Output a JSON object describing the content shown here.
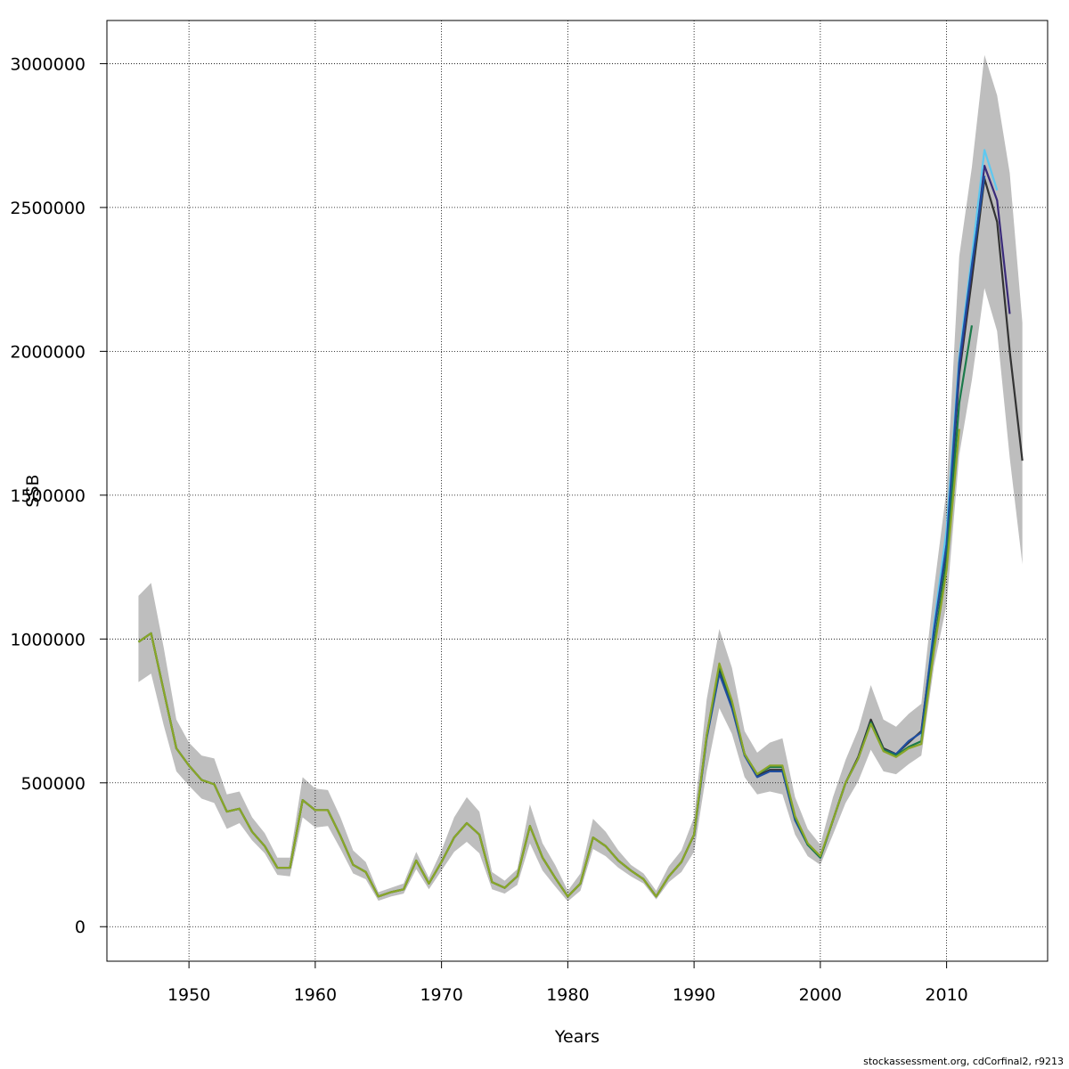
{
  "chart_data": {
    "type": "line",
    "xlabel": "Years",
    "ylabel": "SSB",
    "xlim": [
      1943.5,
      2018
    ],
    "ylim": [
      -120000,
      3150000
    ],
    "x_ticks": [
      1950,
      1960,
      1970,
      1980,
      1990,
      2000,
      2010
    ],
    "y_ticks": [
      0,
      500000,
      1000000,
      1500000,
      2000000,
      2500000,
      3000000
    ],
    "y_tick_labels": [
      "0",
      "500000",
      "1000000",
      "1500000",
      "2000000",
      "2500000",
      "3000000"
    ],
    "grid": true,
    "confidence_band": {
      "color": "#bebebe",
      "x": [
        1946,
        1947,
        1948,
        1949,
        1950,
        1951,
        1952,
        1953,
        1954,
        1955,
        1956,
        1957,
        1958,
        1959,
        1960,
        1961,
        1962,
        1963,
        1964,
        1965,
        1966,
        1967,
        1968,
        1969,
        1970,
        1971,
        1972,
        1973,
        1974,
        1975,
        1976,
        1977,
        1978,
        1979,
        1980,
        1981,
        1982,
        1983,
        1984,
        1985,
        1986,
        1987,
        1988,
        1989,
        1990,
        1991,
        1992,
        1993,
        1994,
        1995,
        1996,
        1997,
        1998,
        1999,
        2000,
        2001,
        2002,
        2003,
        2004,
        2005,
        2006,
        2007,
        2008,
        2009,
        2010,
        2011,
        2012,
        2013,
        2014,
        2015,
        2016
      ],
      "lower": [
        850000,
        880000,
        700000,
        540000,
        490000,
        445000,
        430000,
        340000,
        360000,
        300000,
        255000,
        180000,
        175000,
        380000,
        345000,
        350000,
        270000,
        185000,
        165000,
        90000,
        105000,
        115000,
        200000,
        130000,
        195000,
        260000,
        295000,
        255000,
        130000,
        115000,
        145000,
        290000,
        195000,
        140000,
        88000,
        125000,
        270000,
        245000,
        205000,
        175000,
        150000,
        95000,
        155000,
        190000,
        260000,
        540000,
        760000,
        670000,
        520000,
        460000,
        470000,
        460000,
        320000,
        245000,
        215000,
        320000,
        430000,
        505000,
        615000,
        540000,
        530000,
        565000,
        595000,
        905000,
        1120000,
        1640000,
        1900000,
        2220000,
        2070000,
        1630000,
        1260000
      ],
      "upper": [
        1150000,
        1195000,
        970000,
        720000,
        640000,
        595000,
        585000,
        460000,
        470000,
        380000,
        325000,
        240000,
        240000,
        520000,
        480000,
        475000,
        380000,
        265000,
        225000,
        120000,
        135000,
        150000,
        260000,
        170000,
        265000,
        380000,
        450000,
        400000,
        190000,
        160000,
        200000,
        425000,
        290000,
        215000,
        125000,
        185000,
        375000,
        330000,
        265000,
        215000,
        185000,
        125000,
        210000,
        265000,
        380000,
        790000,
        1035000,
        900000,
        680000,
        605000,
        640000,
        655000,
        450000,
        340000,
        285000,
        450000,
        580000,
        685000,
        840000,
        720000,
        695000,
        740000,
        775000,
        1175000,
        1520000,
        2330000,
        2640000,
        3030000,
        2890000,
        2620000,
        2100000
      ]
    },
    "series": [
      {
        "color": "#333333",
        "x": [
          1946,
          1947,
          1948,
          1949,
          1950,
          1951,
          1952,
          1953,
          1954,
          1955,
          1956,
          1957,
          1958,
          1959,
          1960,
          1961,
          1962,
          1963,
          1964,
          1965,
          1966,
          1967,
          1968,
          1969,
          1970,
          1971,
          1972,
          1973,
          1974,
          1975,
          1976,
          1977,
          1978,
          1979,
          1980,
          1981,
          1982,
          1983,
          1984,
          1985,
          1986,
          1987,
          1988,
          1989,
          1990,
          1991,
          1992,
          1993,
          1994,
          1995,
          1996,
          1997,
          1998,
          1999,
          2000,
          2001,
          2002,
          2003,
          2004,
          2005,
          2006,
          2007,
          2008,
          2009,
          2010,
          2011,
          2012,
          2013,
          2014,
          2015,
          2016
        ],
        "values": [
          990000,
          1020000,
          820000,
          620000,
          560000,
          510000,
          495000,
          400000,
          410000,
          330000,
          280000,
          205000,
          205000,
          440000,
          405000,
          405000,
          315000,
          215000,
          190000,
          105000,
          120000,
          130000,
          230000,
          150000,
          225000,
          310000,
          360000,
          320000,
          155000,
          135000,
          175000,
          350000,
          240000,
          170000,
          105000,
          150000,
          310000,
          280000,
          230000,
          195000,
          165000,
          105000,
          175000,
          225000,
          320000,
          660000,
          890000,
          770000,
          600000,
          525000,
          545000,
          545000,
          375000,
          285000,
          240000,
          370000,
          500000,
          590000,
          720000,
          620000,
          600000,
          640000,
          680000,
          1030000,
          1310000,
          1920000,
          2250000,
          2600000,
          2450000,
          2000000,
          1620000
        ]
      },
      {
        "color": "#3a2a7a",
        "x": [
          2009,
          2010,
          2011,
          2012,
          2013,
          2014,
          2015
        ],
        "values": [
          1040000,
          1330000,
          1940000,
          2290000,
          2645000,
          2525000,
          2130000
        ]
      },
      {
        "color": "#5ec8f0",
        "x": [
          2008,
          2009,
          2010,
          2011,
          2012,
          2013,
          2014
        ],
        "values": [
          660000,
          1050000,
          1380000,
          1980000,
          2330000,
          2700000,
          2560000
        ]
      },
      {
        "color": "#1f4ea0",
        "x": [
          1990,
          1991,
          1992,
          1993,
          1994,
          1995,
          1996,
          1997,
          1998,
          1999,
          2000,
          2001,
          2002,
          2003,
          2004,
          2005,
          2006,
          2007,
          2008,
          2009,
          2010,
          2011,
          2012,
          2013
        ],
        "values": [
          315000,
          655000,
          880000,
          760000,
          595000,
          520000,
          540000,
          540000,
          370000,
          285000,
          240000,
          370000,
          500000,
          585000,
          710000,
          615000,
          600000,
          645000,
          675000,
          1030000,
          1330000,
          1960000,
          2300000,
          2610000
        ]
      },
      {
        "color": "#1b7a4a",
        "x": [
          1946,
          1947,
          1948,
          1949,
          1950,
          1951,
          1952,
          1953,
          1954,
          1955,
          1956,
          1957,
          1958,
          1959,
          1960,
          1961,
          1962,
          1963,
          1964,
          1965,
          1966,
          1967,
          1968,
          1969,
          1970,
          1971,
          1972,
          1973,
          1974,
          1975,
          1976,
          1977,
          1978,
          1979,
          1980,
          1981,
          1982,
          1983,
          1984,
          1985,
          1986,
          1987,
          1988,
          1989,
          1990,
          1991,
          1992,
          1993,
          1994,
          1995,
          1996,
          1997,
          1998,
          1999,
          2000,
          2001,
          2002,
          2003,
          2004,
          2005,
          2006,
          2007,
          2008,
          2009,
          2010,
          2011,
          2012
        ],
        "values": [
          990000,
          1020000,
          820000,
          620000,
          560000,
          510000,
          495000,
          400000,
          410000,
          330000,
          280000,
          205000,
          205000,
          440000,
          405000,
          405000,
          315000,
          215000,
          190000,
          105000,
          120000,
          130000,
          230000,
          150000,
          225000,
          310000,
          360000,
          320000,
          155000,
          135000,
          175000,
          350000,
          240000,
          170000,
          105000,
          150000,
          310000,
          280000,
          230000,
          195000,
          165000,
          105000,
          175000,
          225000,
          320000,
          665000,
          905000,
          780000,
          600000,
          530000,
          555000,
          555000,
          380000,
          285000,
          240000,
          370000,
          500000,
          585000,
          710000,
          615000,
          595000,
          625000,
          645000,
          980000,
          1270000,
          1820000,
          2090000
        ]
      },
      {
        "color": "#8aa628",
        "x": [
          1946,
          1947,
          1948,
          1949,
          1950,
          1951,
          1952,
          1953,
          1954,
          1955,
          1956,
          1957,
          1958,
          1959,
          1960,
          1961,
          1962,
          1963,
          1964,
          1965,
          1966,
          1967,
          1968,
          1969,
          1970,
          1971,
          1972,
          1973,
          1974,
          1975,
          1976,
          1977,
          1978,
          1979,
          1980,
          1981,
          1982,
          1983,
          1984,
          1985,
          1986,
          1987,
          1988,
          1989,
          1990,
          1991,
          1992,
          1993,
          1994,
          1995,
          1996,
          1997,
          1998,
          1999,
          2000,
          2001,
          2002,
          2003,
          2004,
          2005,
          2006,
          2007,
          2008,
          2009,
          2010,
          2011
        ],
        "values": [
          990000,
          1020000,
          820000,
          620000,
          560000,
          510000,
          495000,
          400000,
          410000,
          330000,
          280000,
          205000,
          205000,
          440000,
          405000,
          405000,
          315000,
          215000,
          190000,
          105000,
          120000,
          130000,
          230000,
          150000,
          225000,
          310000,
          360000,
          320000,
          155000,
          135000,
          175000,
          350000,
          240000,
          170000,
          105000,
          150000,
          310000,
          280000,
          230000,
          195000,
          165000,
          105000,
          175000,
          225000,
          320000,
          665000,
          915000,
          785000,
          600000,
          530000,
          560000,
          560000,
          385000,
          290000,
          245000,
          370000,
          500000,
          585000,
          705000,
          610000,
          590000,
          620000,
          635000,
          960000,
          1240000,
          1730000
        ]
      }
    ]
  },
  "footer": "stockassessment.org, cdCorfinal2, r9213"
}
